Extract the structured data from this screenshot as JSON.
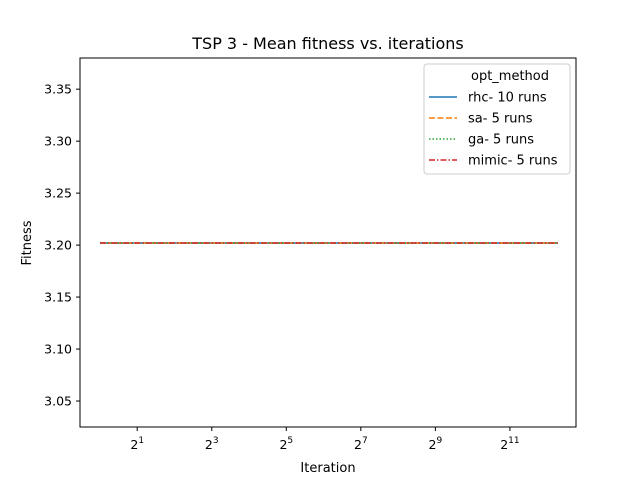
{
  "chart_data": {
    "type": "line",
    "title": "TSP 3 - Mean fitness vs. iterations",
    "xlabel": "Iteration",
    "ylabel": "Fitness",
    "xscale": "log2",
    "xlim": [
      0.69,
      7000
    ],
    "ylim": [
      3.025,
      3.38
    ],
    "x_ticks": [
      2,
      8,
      32,
      128,
      512,
      2048
    ],
    "x_tick_labels": [
      {
        "base": "2",
        "exp": "1"
      },
      {
        "base": "2",
        "exp": "3"
      },
      {
        "base": "2",
        "exp": "5"
      },
      {
        "base": "2",
        "exp": "7"
      },
      {
        "base": "2",
        "exp": "9"
      },
      {
        "base": "2",
        "exp": "11"
      }
    ],
    "y_ticks": [
      3.05,
      3.1,
      3.15,
      3.2,
      3.25,
      3.3,
      3.35
    ],
    "y_tick_labels": [
      "3.05",
      "3.10",
      "3.15",
      "3.20",
      "3.25",
      "3.30",
      "3.35"
    ],
    "grid": false,
    "legend": {
      "title": "opt_method",
      "placement": "top-right"
    },
    "series": [
      {
        "name": "rhc- 10 runs",
        "color": "#1f77b4",
        "dash": "solid",
        "x": [
          1,
          5000
        ],
        "y": [
          3.202,
          3.202
        ]
      },
      {
        "name": "sa- 5 runs",
        "color": "#ff7f0e",
        "dash": "dashed",
        "x": [
          1,
          5000
        ],
        "y": [
          3.202,
          3.202
        ]
      },
      {
        "name": "ga- 5 runs",
        "color": "#2ca02c",
        "dash": "dotted",
        "x": [
          1,
          5000
        ],
        "y": [
          3.202,
          3.202
        ]
      },
      {
        "name": "mimic- 5 runs",
        "color": "#d62728",
        "dash": "dashdot",
        "x": [
          1,
          5000
        ],
        "y": [
          3.202,
          3.202
        ]
      }
    ]
  }
}
